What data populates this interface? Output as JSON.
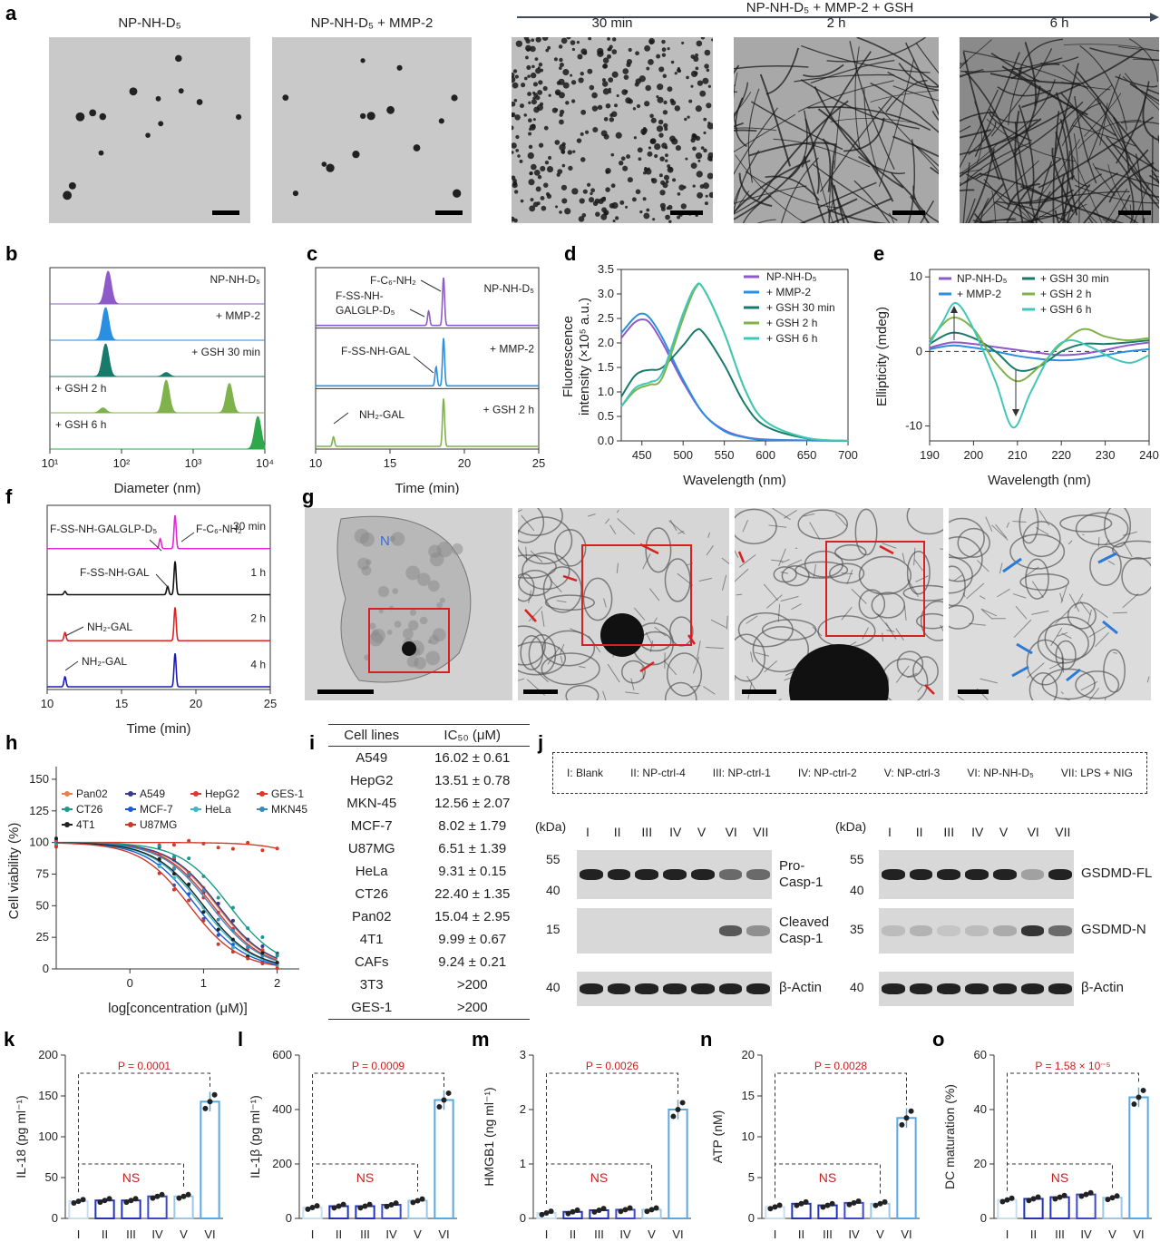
{
  "panels": {
    "a": {
      "label": "a",
      "images": [
        {
          "caption": "NP-NH-D₅",
          "desc": "tem-sparse"
        },
        {
          "caption": "NP-NH-D₅ + MMP-2",
          "desc": "tem-sparse"
        },
        {
          "caption": "30 min",
          "desc": "tem-clusters"
        },
        {
          "caption": "2 h",
          "desc": "tem-fibers"
        },
        {
          "caption": "6 h",
          "desc": "tem-dense-fibers"
        }
      ],
      "arrow_label": "NP-NH-D₅ + MMP-2 + GSH"
    },
    "b": {
      "label": "b"
    },
    "c": {
      "label": "c"
    },
    "d": {
      "label": "d"
    },
    "e": {
      "label": "e"
    },
    "f": {
      "label": "f"
    },
    "g": {
      "label": "g",
      "nucleus_label": "N"
    },
    "h": {
      "label": "h"
    },
    "i": {
      "label": "i",
      "headers": [
        "Cell lines",
        "IC₅₀ (μM)"
      ],
      "rows": [
        [
          "A549",
          "16.02 ± 0.61"
        ],
        [
          "HepG2",
          "13.51 ± 0.78"
        ],
        [
          "MKN-45",
          "12.56 ± 2.07"
        ],
        [
          "MCF-7",
          "8.02 ± 1.79"
        ],
        [
          "U87MG",
          "6.51 ± 1.39"
        ],
        [
          "HeLa",
          "9.31 ± 0.15"
        ],
        [
          "CT26",
          "22.40 ± 1.35"
        ],
        [
          "Pan02",
          "15.04 ± 2.95"
        ],
        [
          "4T1",
          "9.99 ± 0.67"
        ],
        [
          "CAFs",
          "9.24 ± 0.21"
        ],
        [
          "3T3",
          ">200"
        ],
        [
          "GES-1",
          ">200"
        ]
      ]
    },
    "j": {
      "label": "j",
      "legend": [
        "I: Blank",
        "II: NP-ctrl-4",
        "III: NP-ctrl-1",
        "IV: NP-ctrl-2",
        "V: NP-ctrl-3",
        "VI: NP-NH-D₅",
        "VII: LPS + NIG"
      ],
      "lanes": [
        "I",
        "II",
        "III",
        "IV",
        "V",
        "VI",
        "VII"
      ],
      "kda": "(kDa)",
      "left_blots": [
        {
          "name": "Pro-Casp-1",
          "line1": "Pro-",
          "line2": "Casp-1",
          "markers": [
            "55",
            "40"
          ]
        },
        {
          "name": "Cleaved Casp-1",
          "line1": "Cleaved",
          "line2": "Casp-1",
          "markers": [
            "15"
          ]
        },
        {
          "name": "β-Actin",
          "line1": "β-Actin",
          "line2": "",
          "markers": [
            "40"
          ]
        }
      ],
      "right_blots": [
        {
          "name": "GSDMD-FL",
          "line1": "GSDMD-FL",
          "line2": "",
          "markers": [
            "55",
            "40"
          ]
        },
        {
          "name": "GSDMD-N",
          "line1": "GSDMD-N",
          "line2": "",
          "markers": [
            "35"
          ]
        },
        {
          "name": "β-Actin",
          "line1": "β-Actin",
          "line2": "",
          "markers": [
            "40"
          ]
        }
      ]
    }
  },
  "chart_data": [
    {
      "panel": "b",
      "type": "area",
      "xlabel": "Diameter (nm)",
      "xscale": "log",
      "xlim": [
        10,
        10000
      ],
      "xticks": [
        "10¹",
        "10²",
        "10³",
        "10⁴"
      ],
      "series": [
        {
          "name": "NP-NH-D₅",
          "color": "#8e59c8",
          "peaks": [
            [
              65,
              1.0
            ]
          ]
        },
        {
          "name": "+ MMP-2",
          "color": "#2a8fe0",
          "peaks": [
            [
              60,
              1.0
            ]
          ]
        },
        {
          "name": "+ GSH 30 min",
          "color": "#187a6a",
          "peaks": [
            [
              60,
              1.0
            ],
            [
              420,
              0.12
            ]
          ]
        },
        {
          "name": "+ GSH 2 h",
          "color": "#7fb24a",
          "peaks": [
            [
              55,
              0.15
            ],
            [
              420,
              1.0
            ],
            [
              3200,
              0.9
            ]
          ]
        },
        {
          "name": "+ GSH 6 h",
          "color": "#2ea84a",
          "peaks": [
            [
              8000,
              1.0
            ]
          ]
        }
      ]
    },
    {
      "panel": "c",
      "type": "line",
      "xlabel": "Time (min)",
      "xlim": [
        10,
        25
      ],
      "xticks": [
        10,
        15,
        20,
        25
      ],
      "series": [
        {
          "name": "NP-NH-D₅",
          "color": "#8e59c8",
          "peaks": [
            [
              17.6,
              0.3
            ],
            [
              18.6,
              1.0
            ]
          ]
        },
        {
          "name": "+ MMP-2",
          "color": "#2a8fe0",
          "peaks": [
            [
              18.1,
              0.4
            ],
            [
              18.6,
              1.0
            ]
          ]
        },
        {
          "name": "+ GSH 2 h",
          "color": "#7fb24a",
          "peaks": [
            [
              11.2,
              0.2
            ],
            [
              18.6,
              1.0
            ]
          ]
        }
      ],
      "annotations": [
        "F-C₆-NH₂",
        "F-SS-NH-",
        "GALGLP-D₅",
        "F-SS-NH-GAL",
        "NH₂-GAL"
      ]
    },
    {
      "panel": "d",
      "type": "line",
      "xlabel": "Wavelength (nm)",
      "ylabel_line1": "Fluorescence",
      "ylabel_line2": "intensity (×10⁵ a.u.)",
      "xlim": [
        425,
        700
      ],
      "ylim": [
        0,
        3.5
      ],
      "xticks": [
        450,
        500,
        550,
        600,
        650,
        700
      ],
      "yticks": [
        0,
        0.5,
        1.0,
        1.5,
        2.0,
        2.5,
        3.0,
        3.5
      ],
      "series": [
        {
          "name": "NP-NH-D₅",
          "color": "#8e59c8",
          "x": [
            425,
            440,
            450,
            460,
            475,
            500,
            525,
            550,
            575,
            600,
            650,
            700
          ],
          "y": [
            2.1,
            2.4,
            2.48,
            2.4,
            2.0,
            1.2,
            0.55,
            0.22,
            0.08,
            0.03,
            0.01,
            0.0
          ]
        },
        {
          "name": "+ MMP-2",
          "color": "#2a8fe0",
          "x": [
            425,
            440,
            450,
            460,
            475,
            500,
            525,
            550,
            575,
            600,
            650,
            700
          ],
          "y": [
            2.2,
            2.5,
            2.6,
            2.5,
            2.1,
            1.25,
            0.55,
            0.2,
            0.07,
            0.02,
            0.01,
            0.0
          ]
        },
        {
          "name": "+ GSH 30 min",
          "color": "#187a6a",
          "x": [
            425,
            440,
            450,
            460,
            475,
            500,
            515,
            525,
            550,
            575,
            600,
            650,
            700
          ],
          "y": [
            0.9,
            1.3,
            1.42,
            1.45,
            1.5,
            1.95,
            2.25,
            2.2,
            1.55,
            0.75,
            0.3,
            0.05,
            0.0
          ]
        },
        {
          "name": "+ GSH 2 h",
          "color": "#7fb24a",
          "x": [
            425,
            440,
            450,
            460,
            475,
            500,
            515,
            525,
            550,
            575,
            600,
            650,
            700
          ],
          "y": [
            0.7,
            1.0,
            1.1,
            1.15,
            1.3,
            2.5,
            3.12,
            3.1,
            2.2,
            1.05,
            0.4,
            0.06,
            0.0
          ]
        },
        {
          "name": "+ GSH 6 h",
          "color": "#3fc8b8",
          "x": [
            425,
            440,
            450,
            460,
            475,
            500,
            515,
            525,
            550,
            575,
            600,
            650,
            700
          ],
          "y": [
            0.7,
            1.05,
            1.15,
            1.2,
            1.4,
            2.6,
            3.15,
            3.1,
            2.2,
            1.05,
            0.4,
            0.06,
            0.0
          ]
        }
      ]
    },
    {
      "panel": "e",
      "type": "line",
      "xlabel": "Wavelength (nm)",
      "ylabel": "Ellipticity (mdeg)",
      "xlim": [
        190,
        240
      ],
      "ylim": [
        -12,
        11
      ],
      "xticks": [
        190,
        200,
        210,
        220,
        230,
        240
      ],
      "yticks": [
        -10,
        0,
        10
      ],
      "series": [
        {
          "name": "NP-NH-D₅",
          "color": "#8e59c8",
          "x": [
            190,
            195,
            200,
            205,
            210,
            215,
            220,
            225,
            230,
            235,
            240
          ],
          "y": [
            0.5,
            1.2,
            1.0,
            0.6,
            0.2,
            -0.2,
            -0.5,
            -0.3,
            0.2,
            0.8,
            1.2
          ]
        },
        {
          "name": "+ MMP-2",
          "color": "#2a8fe0",
          "x": [
            190,
            195,
            200,
            205,
            210,
            215,
            220,
            225,
            230,
            235,
            240
          ],
          "y": [
            0.3,
            0.8,
            0.5,
            0.0,
            -0.6,
            -1.0,
            -1.2,
            -1.0,
            -0.5,
            0.0,
            0.3
          ]
        },
        {
          "name": "+ GSH 30 min",
          "color": "#187a6a",
          "x": [
            190,
            195,
            200,
            205,
            210,
            215,
            220,
            225,
            230,
            235,
            240
          ],
          "y": [
            1.0,
            2.5,
            1.8,
            0.0,
            -2.5,
            -2.0,
            0.0,
            1.0,
            1.0,
            1.2,
            1.5
          ]
        },
        {
          "name": "+ GSH 2 h",
          "color": "#7fb24a",
          "x": [
            190,
            195,
            200,
            205,
            210,
            215,
            220,
            225,
            230,
            235,
            240
          ],
          "y": [
            1.5,
            4.5,
            3.0,
            -1.5,
            -4.0,
            -2.0,
            1.0,
            3.0,
            2.0,
            1.5,
            1.8
          ]
        },
        {
          "name": "+ GSH 6 h",
          "color": "#3fc8b8",
          "x": [
            190,
            193,
            196,
            200,
            205,
            209,
            213,
            218,
            222,
            227,
            232,
            236,
            240
          ],
          "y": [
            1.0,
            4.0,
            6.5,
            3.0,
            -4.0,
            -10.2,
            -5.5,
            0.0,
            1.5,
            0.5,
            -1.0,
            -1.5,
            -0.5
          ]
        }
      ]
    },
    {
      "panel": "f",
      "type": "line",
      "xlabel": "Time (min)",
      "xlim": [
        10,
        25
      ],
      "xticks": [
        10,
        15,
        20,
        25
      ],
      "series": [
        {
          "name": "30 min",
          "color": "#e028d8",
          "peaks": [
            [
              17.6,
              0.3
            ],
            [
              18.6,
              1.0
            ]
          ]
        },
        {
          "name": "1 h",
          "color": "#111111",
          "peaks": [
            [
              11.2,
              0.1
            ],
            [
              18.1,
              0.25
            ],
            [
              18.6,
              1.0
            ]
          ]
        },
        {
          "name": "2 h",
          "color": "#dd2222",
          "peaks": [
            [
              11.2,
              0.25
            ],
            [
              18.6,
              1.0
            ]
          ]
        },
        {
          "name": "4 h",
          "color": "#1a1ab8",
          "peaks": [
            [
              11.2,
              0.3
            ],
            [
              18.6,
              1.0
            ]
          ]
        }
      ],
      "annotations": [
        "F-SS-NH-GALGLP-D₅",
        "F-C₆-NH₂",
        "F-SS-NH-GAL",
        "NH₂-GAL",
        "NH₂-GAL"
      ]
    },
    {
      "panel": "h",
      "type": "line",
      "xlabel": "log[concentration (μM)]",
      "ylabel": "Cell viability (%)",
      "xlim": [
        -1,
        2.3
      ],
      "ylim": [
        0,
        160
      ],
      "xticks": [
        0,
        1,
        2
      ],
      "yticks": [
        0,
        25,
        50,
        75,
        100,
        125,
        150
      ],
      "series": [
        {
          "name": "Pan02",
          "color": "#e8824a",
          "ic50_log": 1.18
        },
        {
          "name": "A549",
          "color": "#3a3a8a",
          "ic50_log": 1.2
        },
        {
          "name": "HepG2",
          "color": "#d83838",
          "ic50_log": 1.13
        },
        {
          "name": "GES-1",
          "color": "#d83a2a",
          "ic50_log": 3.0
        },
        {
          "name": "CT26",
          "color": "#1a9a8a",
          "ic50_log": 1.35
        },
        {
          "name": "MCF-7",
          "color": "#1a5ad8",
          "ic50_log": 0.9
        },
        {
          "name": "HeLa",
          "color": "#3ab8c8",
          "ic50_log": 0.97
        },
        {
          "name": "MKN45",
          "color": "#3a8ab8",
          "ic50_log": 1.1
        },
        {
          "name": "4T1",
          "color": "#222222",
          "ic50_log": 1.0
        },
        {
          "name": "U87MG",
          "color": "#c83a2a",
          "ic50_log": 0.81
        }
      ]
    },
    {
      "panel": "k",
      "type": "bar",
      "ylabel": "IL-18 (pg ml⁻¹)",
      "categories": [
        "I",
        "II",
        "III",
        "IV",
        "V",
        "VI"
      ],
      "values": [
        21,
        22,
        22,
        27,
        27,
        143
      ],
      "ylim": [
        0,
        200
      ],
      "yticks": [
        0,
        50,
        100,
        150,
        200
      ],
      "p": "P = 0.0001",
      "ns": "NS"
    },
    {
      "panel": "l",
      "type": "bar",
      "ylabel": "IL-1β (pg ml⁻¹)",
      "categories": [
        "I",
        "II",
        "III",
        "IV",
        "V",
        "VI"
      ],
      "values": [
        40,
        45,
        45,
        50,
        65,
        435
      ],
      "ylim": [
        0,
        600
      ],
      "yticks": [
        0,
        200,
        400,
        600
      ],
      "p": "P = 0.0009",
      "ns": "NS"
    },
    {
      "panel": "m",
      "type": "bar",
      "ylabel": "HMGB1 (ng ml⁻¹)",
      "categories": [
        "I",
        "II",
        "III",
        "IV",
        "V",
        "VI"
      ],
      "values": [
        0.1,
        0.12,
        0.15,
        0.16,
        0.16,
        2.0
      ],
      "ylim": [
        0,
        3
      ],
      "yticks": [
        0,
        1,
        2,
        3
      ],
      "p": "P = 0.0026",
      "ns": "NS"
    },
    {
      "panel": "n",
      "type": "bar",
      "ylabel": "ATP (nM)",
      "categories": [
        "I",
        "II",
        "III",
        "IV",
        "V",
        "VI"
      ],
      "values": [
        1.4,
        1.8,
        1.6,
        1.9,
        1.8,
        12.3
      ],
      "ylim": [
        0,
        20
      ],
      "yticks": [
        0,
        5,
        10,
        15,
        20
      ],
      "p": "P = 0.0028",
      "ns": "NS"
    },
    {
      "panel": "o",
      "type": "bar",
      "ylabel": "DC maturation (%)",
      "categories": [
        "I",
        "II",
        "III",
        "IV",
        "V",
        "VI"
      ],
      "values": [
        6.8,
        7.2,
        7.8,
        8.8,
        7.6,
        44.5
      ],
      "ylim": [
        0,
        60
      ],
      "yticks": [
        0,
        20,
        40,
        60
      ],
      "p": "P = 1.58 × 10⁻⁵",
      "ns": "NS"
    }
  ]
}
